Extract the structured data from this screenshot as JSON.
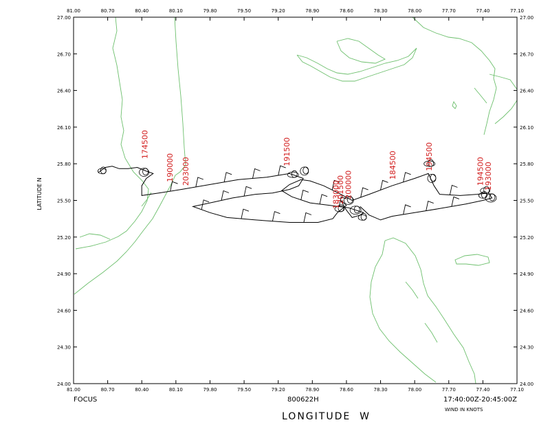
{
  "colors": {
    "coast": "#6cbf6c",
    "track": "#000000",
    "label": "#d21f1f",
    "frame": "#000000"
  },
  "axes": {
    "x_ticks": [
      "81.00",
      "80.70",
      "80.40",
      "80.10",
      "79.80",
      "79.50",
      "79.20",
      "78.90",
      "78.60",
      "78.30",
      "78.00",
      "77.70",
      "77.40",
      "77.10"
    ],
    "y_ticks": [
      "27.00",
      "26.70",
      "26.40",
      "26.10",
      "25.80",
      "25.50",
      "25.20",
      "24.90",
      "24.60",
      "24.30",
      "24.00"
    ],
    "xlabel": "LONGITUDE  W",
    "ylabel": "LATITUDE  N"
  },
  "annotations": {
    "left": "FOCUS",
    "center": "800622H",
    "right": "17:40:00Z-20:45:00Z",
    "units": "WIND IN KNOTS"
  },
  "time_labels": [
    "174500",
    "183000",
    "184500",
    "190000",
    "191500",
    "193000",
    "194500",
    "200000",
    "201500",
    "203000"
  ],
  "chart_data": {
    "type": "line",
    "title": "",
    "xlabel": "LONGITUDE  W",
    "ylabel": "LATITUDE  N",
    "xlim": [
      81.0,
      77.1
    ],
    "ylim": [
      24.0,
      27.0
    ],
    "track": [
      [
        80.78,
        25.73
      ],
      [
        80.72,
        25.77
      ],
      [
        80.66,
        25.78
      ],
      [
        80.6,
        25.76
      ],
      [
        80.52,
        25.76
      ],
      [
        80.44,
        25.77
      ],
      [
        80.36,
        25.74
      ],
      [
        80.3,
        25.72
      ],
      [
        80.36,
        25.68
      ],
      [
        80.4,
        25.62
      ],
      [
        80.4,
        25.54
      ],
      [
        80.25,
        25.56
      ],
      [
        80.05,
        25.59
      ],
      [
        79.8,
        25.63
      ],
      [
        79.55,
        25.67
      ],
      [
        79.3,
        25.69
      ],
      [
        79.1,
        25.72
      ],
      [
        78.98,
        25.68
      ],
      [
        79.02,
        25.62
      ],
      [
        79.1,
        25.59
      ],
      [
        79.25,
        25.56
      ],
      [
        79.4,
        25.55
      ],
      [
        79.6,
        25.52
      ],
      [
        79.8,
        25.48
      ],
      [
        79.95,
        25.45
      ],
      [
        79.8,
        25.4
      ],
      [
        79.65,
        25.36
      ],
      [
        79.4,
        25.34
      ],
      [
        79.1,
        25.32
      ],
      [
        78.85,
        25.32
      ],
      [
        78.72,
        25.35
      ],
      [
        78.68,
        25.4
      ],
      [
        78.6,
        25.46
      ],
      [
        78.65,
        25.5
      ],
      [
        78.6,
        25.42
      ],
      [
        78.55,
        25.36
      ],
      [
        78.48,
        25.38
      ],
      [
        78.45,
        25.4
      ],
      [
        78.58,
        25.44
      ],
      [
        78.75,
        25.46
      ],
      [
        78.92,
        25.48
      ],
      [
        79.08,
        25.53
      ],
      [
        79.17,
        25.58
      ],
      [
        79.1,
        25.63
      ],
      [
        79.0,
        25.67
      ],
      [
        78.92,
        25.66
      ],
      [
        78.8,
        25.62
      ],
      [
        78.65,
        25.55
      ],
      [
        78.55,
        25.5
      ],
      [
        78.4,
        25.55
      ],
      [
        78.2,
        25.62
      ],
      [
        78.0,
        25.68
      ],
      [
        77.88,
        25.72
      ],
      [
        77.83,
        25.62
      ],
      [
        77.78,
        25.55
      ],
      [
        77.6,
        25.54
      ],
      [
        77.45,
        25.55
      ],
      [
        77.35,
        25.56
      ],
      [
        77.32,
        25.52
      ],
      [
        77.4,
        25.5
      ],
      [
        77.55,
        25.47
      ],
      [
        77.8,
        25.43
      ],
      [
        78.0,
        25.4
      ],
      [
        78.2,
        25.37
      ],
      [
        78.3,
        25.34
      ],
      [
        78.4,
        25.38
      ],
      [
        78.48,
        25.45
      ]
    ],
    "loops": [
      [
        80.75,
        25.74
      ],
      [
        80.38,
        25.73
      ],
      [
        79.07,
        25.71
      ],
      [
        78.97,
        25.74
      ],
      [
        78.66,
        25.43
      ],
      [
        78.52,
        25.42
      ],
      [
        78.46,
        25.36
      ],
      [
        78.58,
        25.5
      ],
      [
        77.87,
        25.8
      ],
      [
        77.85,
        25.68
      ],
      [
        77.38,
        25.58
      ],
      [
        77.33,
        25.52
      ],
      [
        77.4,
        25.54
      ]
    ],
    "labels": [
      {
        "text": "174500",
        "lon": 80.35,
        "lat": 25.84
      },
      {
        "text": "190000",
        "lon": 80.13,
        "lat": 25.65
      },
      {
        "text": "203000",
        "lon": 79.99,
        "lat": 25.62
      },
      {
        "text": "191500",
        "lon": 79.1,
        "lat": 25.78
      },
      {
        "text": "183000",
        "lon": 78.67,
        "lat": 25.43
      },
      {
        "text": "201500",
        "lon": 78.63,
        "lat": 25.47
      },
      {
        "text": "200000",
        "lon": 78.56,
        "lat": 25.51
      },
      {
        "text": "184500",
        "lon": 78.17,
        "lat": 25.67
      },
      {
        "text": "194500",
        "lon": 77.85,
        "lat": 25.74
      },
      {
        "text": "193000",
        "lon": 77.33,
        "lat": 25.58
      },
      {
        "text": "194500",
        "lon": 77.4,
        "lat": 25.62
      }
    ]
  }
}
